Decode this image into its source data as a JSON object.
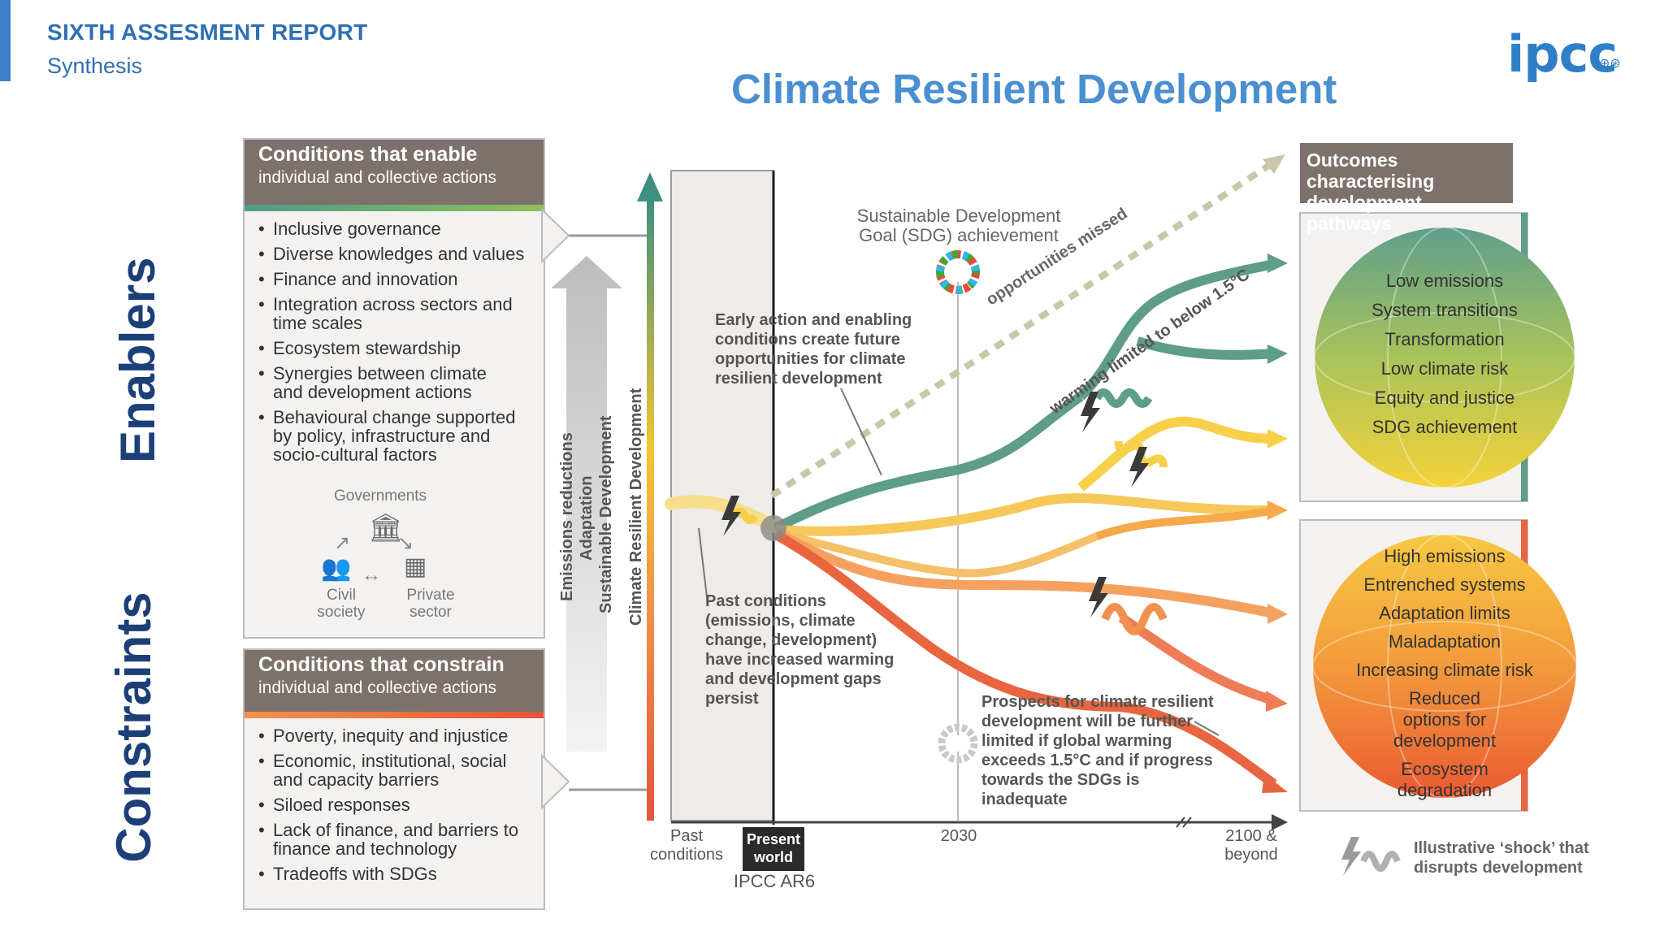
{
  "header": {
    "report_title": "SIXTH ASSESMENT REPORT",
    "report_subtitle": "Synthesis",
    "slide_title": "Climate Resilient Development",
    "logo_text": "ipcc"
  },
  "side_labels": {
    "enablers": "Enablers",
    "constraints": "Constraints"
  },
  "enable_panel": {
    "title": "Conditions that enable",
    "subtitle": "individual and collective actions",
    "items": [
      "Inclusive governance",
      "Diverse knowledges and values",
      "Finance and innovation",
      "Integration across sectors and time scales",
      "Ecosystem stewardship",
      "Synergies between climate and development actions",
      "Behavioural change supported by policy, infrastructure and socio-cultural factors"
    ],
    "actors": {
      "governments": "Governments",
      "civil_society": "Civil society",
      "private_sector": "Private sector"
    }
  },
  "constrain_panel": {
    "title": "Conditions that constrain",
    "subtitle": "individual and collective actions",
    "items": [
      "Poverty, inequity and injustice",
      "Economic, institutional, social and capacity barriers",
      "Siloed responses",
      "Lack of finance, and barriers to finance and technology",
      "Tradeoffs with SDGs"
    ]
  },
  "axis": {
    "vertical_labels": [
      "Emissions reductions",
      "Adaptation",
      "Sustainable Development",
      "Climate Resilient Development"
    ],
    "x_labels": {
      "past": "Past conditions",
      "present": "Present world",
      "y2030": "2030",
      "end": "2100 & beyond",
      "ar6": "IPCC AR6"
    }
  },
  "annotations": {
    "sdg": "Sustainable Development Goal (SDG) achievement",
    "early_action": "Early action and enabling conditions create future opportunities for climate resilient development",
    "past_conditions": "Past conditions (emissions, climate change, development) have increased warming and development gaps persist",
    "prospects": "Prospects for climate resilient development will be further limited if global warming exceeds 1.5°C and if progress towards the SDGs is inadequate",
    "opportunities_missed": "opportunities missed",
    "warming_limited": "warming limited to below 1.5°C"
  },
  "outcomes": {
    "title": "Outcomes characterising development pathways",
    "positive": [
      "Low emissions",
      "System transitions",
      "Transformation",
      "Low climate risk",
      "Equity and justice",
      "SDG achievement"
    ],
    "negative": [
      "High emissions",
      "Entrenched systems",
      "Adaptation limits",
      "Maladaptation",
      "Increasing climate risk",
      "Reduced options for development",
      "Ecosystem degradation"
    ]
  },
  "legend": {
    "shock": "Illustrative ‘shock’ that disrupts development"
  },
  "colors": {
    "accent": "#3b7fc4",
    "title_blue": "#4a8fd0",
    "navy": "#1d3f78",
    "panel_header": "#7d716b",
    "teal": "#4f9a8a",
    "yellow": "#f4c430",
    "orange": "#f2934a",
    "red": "#e4553a"
  }
}
